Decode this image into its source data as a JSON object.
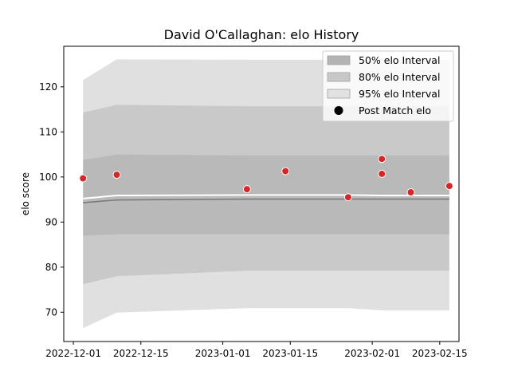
{
  "chart_data": {
    "type": "area",
    "title": "David O'Callaghan: elo History",
    "xlabel": "",
    "ylabel": "elo score",
    "x_tick_labels": [
      "2022-12-01",
      "2022-12-15",
      "2023-01-01",
      "2023-01-15",
      "2023-02-01",
      "2023-02-15"
    ],
    "x_tick_dates": [
      "2022-12-01",
      "2022-12-15",
      "2023-01-01",
      "2023-01-15",
      "2023-02-01",
      "2023-02-15"
    ],
    "y_ticks": [
      70,
      80,
      90,
      100,
      110,
      120
    ],
    "xlim": [
      "2022-11-29",
      "2023-02-19"
    ],
    "ylim": [
      63.5,
      129
    ],
    "grid": false,
    "legend_position": "top-right",
    "legend": [
      {
        "label": "50% elo Interval",
        "color": "#b3b3b3"
      },
      {
        "label": "80% elo Interval",
        "color": "#c8c8c8"
      },
      {
        "label": "95% elo Interval",
        "color": "#e1e1e1"
      },
      {
        "label": "Post Match elo",
        "color": "#000000"
      }
    ],
    "bands": {
      "x": [
        "2022-12-03",
        "2022-12-10",
        "2023-01-06",
        "2023-01-14",
        "2023-01-27",
        "2023-02-03",
        "2023-02-09",
        "2023-02-17"
      ],
      "mean": [
        94.3,
        94.9,
        95.1,
        95.1,
        95.1,
        95.1,
        95.1,
        95.1
      ],
      "p50_lo": [
        95.0,
        95.0,
        95.0,
        95.0,
        95.0,
        95.0,
        95.0,
        95.0
      ],
      "p50_hi": [
        95.2,
        95.9,
        96.0,
        96.0,
        96.0,
        95.9,
        95.9,
        95.9
      ],
      "p80_lo": [
        87.0,
        87.3,
        87.3,
        87.3,
        87.3,
        87.3,
        87.3,
        87.3
      ],
      "p80_hi": [
        103.8,
        105.0,
        104.8,
        104.8,
        104.8,
        104.8,
        104.8,
        104.8
      ],
      "p95_lo": [
        76.2,
        78.0,
        79.2,
        79.2,
        79.2,
        79.2,
        79.2,
        79.2
      ],
      "p95_hi": [
        114.3,
        116.0,
        115.7,
        115.7,
        115.7,
        115.7,
        115.7,
        115.7
      ],
      "p99_lo": [
        66.5,
        69.9,
        70.9,
        70.9,
        70.9,
        70.4,
        70.4,
        70.4
      ],
      "p99_hi": [
        121.5,
        126.1,
        126.0,
        126.0,
        126.0,
        126.0,
        126.0,
        126.0
      ]
    },
    "points": [
      {
        "x": "2022-12-03",
        "y": 99.7
      },
      {
        "x": "2022-12-10",
        "y": 100.5
      },
      {
        "x": "2023-01-06",
        "y": 97.3
      },
      {
        "x": "2023-01-14",
        "y": 101.3
      },
      {
        "x": "2023-01-27",
        "y": 95.5
      },
      {
        "x": "2023-02-03",
        "y": 104.0
      },
      {
        "x": "2023-02-03",
        "y": 100.7
      },
      {
        "x": "2023-02-09",
        "y": 96.6
      },
      {
        "x": "2023-02-17",
        "y": 98.0
      }
    ],
    "point_color": "#d62728"
  }
}
